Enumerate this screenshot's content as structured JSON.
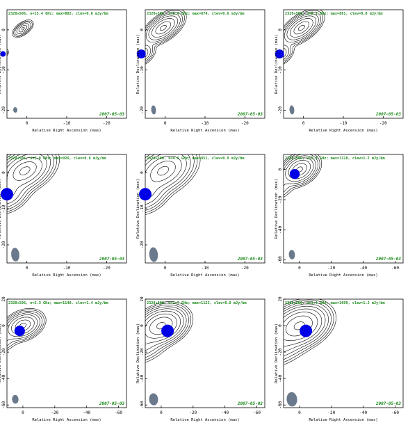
{
  "chart_data": [
    {
      "type": "contour",
      "title": "2320+506, ν=15.4 GHz; max=882, clev=0.6 mJy/bm",
      "date": "2007-05-03",
      "xlabel": "Relative Right Ascension (mas)",
      "ylabel": "Relative Declination (mas)",
      "xlim": [
        5,
        -25
      ],
      "ylim": [
        -22,
        5
      ],
      "xticks": [
        0,
        -10,
        -20
      ],
      "yticks": [
        0,
        -10,
        -20
      ],
      "component_ra": 6,
      "component_dec": -6,
      "beam_major": 1.0,
      "beam_minor": 0.6,
      "beam_pa": -5,
      "components": [
        {
          "ra": 1.0,
          "dec": 0.3,
          "ampl": 1.0,
          "a": 1.2,
          "b": 0.6,
          "ang": -35
        },
        {
          "ra": 6,
          "dec": -6,
          "ampl": 0.3,
          "a": 0.8,
          "b": 0.5,
          "ang": -35
        },
        {
          "ra": 17,
          "dec": -26,
          "ampl": 0.05,
          "a": 1.0,
          "b": 0.7,
          "ang": -30
        }
      ],
      "levels": [
        0.04,
        0.08,
        0.16,
        0.32,
        0.6,
        0.9
      ]
    },
    {
      "type": "contour",
      "title": "2320+506, ν=8.4 GHz; max=874, clev=0.6 mJy/bm",
      "date": "2007-05-03",
      "xlabel": "Relative Right Ascension (mas)",
      "ylabel": "Relative Declination (mas)",
      "xlim": [
        5,
        -25
      ],
      "ylim": [
        -22,
        5
      ],
      "xticks": [
        0,
        -10,
        -20
      ],
      "yticks": [
        0,
        -10,
        -20
      ],
      "component_ra": 6,
      "component_dec": -6,
      "beam_major": 1.6,
      "beam_minor": 1.0,
      "beam_pa": -5,
      "components": [
        {
          "ra": 0.5,
          "dec": 0.5,
          "ampl": 1.0,
          "a": 2.2,
          "b": 1.1,
          "ang": -35
        },
        {
          "ra": 6,
          "dec": -6,
          "ampl": 0.35,
          "a": 1.5,
          "b": 1.0,
          "ang": -35
        },
        {
          "ra": 17,
          "dec": -27,
          "ampl": 0.06,
          "a": 1.5,
          "b": 1.0,
          "ang": -30
        }
      ],
      "levels": [
        0.01,
        0.02,
        0.04,
        0.08,
        0.16,
        0.32,
        0.6,
        0.9
      ]
    },
    {
      "type": "contour",
      "title": "2320+506, ν=8.1 GHz; max=881, clev=0.8 mJy/bm",
      "date": "2007-05-03",
      "xlabel": "Relative Right Ascension (mas)",
      "ylabel": "Relative Declination (mas)",
      "xlim": [
        5,
        -25
      ],
      "ylim": [
        -22,
        5
      ],
      "xticks": [
        0,
        -10,
        -20
      ],
      "yticks": [
        0,
        -10,
        -20
      ],
      "component_ra": 6,
      "component_dec": -6,
      "beam_major": 1.6,
      "beam_minor": 1.0,
      "beam_pa": -5,
      "components": [
        {
          "ra": 0.5,
          "dec": 0.5,
          "ampl": 1.0,
          "a": 2.2,
          "b": 1.1,
          "ang": -35
        },
        {
          "ra": 6,
          "dec": -6,
          "ampl": 0.35,
          "a": 1.5,
          "b": 1.0,
          "ang": -35
        },
        {
          "ra": 17,
          "dec": -27,
          "ampl": 0.06,
          "a": 1.5,
          "b": 1.0,
          "ang": -30
        }
      ],
      "levels": [
        0.01,
        0.02,
        0.04,
        0.08,
        0.16,
        0.32,
        0.6,
        0.9
      ]
    },
    {
      "type": "contour",
      "title": "2320+506, ν=5.0 GHz; max=926, clev=0.8 mJy/bm",
      "date": "2007-05-03",
      "xlabel": "Relative Right Ascension (mas)",
      "ylabel": "Relative Declination (mas)",
      "xlim": [
        5,
        -25
      ],
      "ylim": [
        -25,
        5
      ],
      "xticks": [
        0,
        -10,
        -20
      ],
      "yticks": [
        0,
        -10,
        -20
      ],
      "component_ra": 5,
      "component_dec": -6,
      "beam_major": 2.7,
      "beam_minor": 1.7,
      "beam_pa": -5,
      "components": [
        {
          "ra": 0.5,
          "dec": 0.5,
          "ampl": 1.0,
          "a": 3.2,
          "b": 2.0,
          "ang": -35
        },
        {
          "ra": 5,
          "dec": -6,
          "ampl": 0.4,
          "a": 2.5,
          "b": 1.8,
          "ang": -35
        },
        {
          "ra": 16,
          "dec": -20,
          "ampl": 0.03,
          "a": 2.2,
          "b": 1.6,
          "ang": -30
        }
      ],
      "levels": [
        0.01,
        0.02,
        0.04,
        0.08,
        0.16,
        0.32,
        0.6,
        0.9
      ]
    },
    {
      "type": "contour",
      "title": "2320+506, ν=4.6 GHz; max=851, clev=0.9 mJy/bm",
      "date": "2007-05-03",
      "xlabel": "Relative Right Ascension (mas)",
      "ylabel": "Relative Declination (mas)",
      "xlim": [
        5,
        -25
      ],
      "ylim": [
        -25,
        5
      ],
      "xticks": [
        0,
        -10,
        -20
      ],
      "yticks": [
        0,
        -10,
        -20
      ],
      "component_ra": 5,
      "component_dec": -6,
      "beam_major": 2.9,
      "beam_minor": 1.8,
      "beam_pa": -5,
      "components": [
        {
          "ra": 0.5,
          "dec": 0.5,
          "ampl": 1.0,
          "a": 3.4,
          "b": 2.2,
          "ang": -35
        },
        {
          "ra": 5,
          "dec": -6,
          "ampl": 0.4,
          "a": 2.6,
          "b": 1.9,
          "ang": -35
        },
        {
          "ra": 17,
          "dec": -20,
          "ampl": 0.03,
          "a": 2.4,
          "b": 1.7,
          "ang": -30
        }
      ],
      "levels": [
        0.01,
        0.02,
        0.04,
        0.08,
        0.16,
        0.32,
        0.6,
        0.9
      ]
    },
    {
      "type": "contour",
      "title": "2320+506, ν=2.4 GHz; max=1128, clev=1.2 mJy/bm",
      "date": "2007-05-03",
      "xlabel": "Relative Right Ascension (mas)",
      "ylabel": "Relative Declination (mas)",
      "xlim": [
        10,
        -65
      ],
      "ylim": [
        -62,
        10
      ],
      "xticks": [
        0,
        -20,
        -40,
        -60
      ],
      "yticks": [
        0,
        -20,
        -40,
        -60
      ],
      "component_ra": 3,
      "component_dec": -3,
      "beam_major": 4.5,
      "beam_minor": 3.2,
      "beam_pa": -5,
      "components": [
        {
          "ra": 0,
          "dec": 0,
          "ampl": 1.0,
          "a": 5.0,
          "b": 3.5,
          "ang": -35
        },
        {
          "ra": 14,
          "dec": -12,
          "ampl": 0.1,
          "a": 5.0,
          "b": 3.5,
          "ang": -30
        },
        {
          "ra": 28,
          "dec": -18,
          "ampl": 0.04,
          "a": 5.0,
          "b": 3.0,
          "ang": -20
        }
      ],
      "levels": [
        0.01,
        0.02,
        0.04,
        0.08,
        0.16,
        0.32,
        0.6,
        0.9
      ]
    },
    {
      "type": "contour",
      "title": "2320+506, ν=2.3 GHz; max=1140, clev=1.4 mJy/bm",
      "date": "2007-05-03",
      "xlabel": "Relative Right Ascension (mas)",
      "ylabel": "Relative Declination (mas)",
      "xlim": [
        10,
        -65
      ],
      "ylim": [
        -62,
        20
      ],
      "xticks": [
        0,
        -20,
        -40,
        -60
      ],
      "yticks": [
        20,
        0,
        -20,
        -40,
        -60
      ],
      "component_ra": 2,
      "component_dec": -4,
      "beam_major": 4.7,
      "beam_minor": 3.4,
      "beam_pa": -5,
      "components": [
        {
          "ra": 0,
          "dec": 0,
          "ampl": 1.0,
          "a": 5.2,
          "b": 3.7,
          "ang": -35
        },
        {
          "ra": 14,
          "dec": -12,
          "ampl": 0.1,
          "a": 5.2,
          "b": 3.6,
          "ang": -30
        },
        {
          "ra": 28,
          "dec": -18,
          "ampl": 0.04,
          "a": 5.2,
          "b": 3.2,
          "ang": -20
        }
      ],
      "levels": [
        0.01,
        0.02,
        0.04,
        0.08,
        0.16,
        0.32,
        0.6,
        0.9
      ]
    },
    {
      "type": "contour",
      "title": "2320+506, ν=1.7 GHz; max=1122, clev=0.8 mJy/bm",
      "date": "2007-05-03",
      "xlabel": "Relative Right Ascension (mas)",
      "ylabel": "Relative Declination (mas)",
      "xlim": [
        10,
        -65
      ],
      "ylim": [
        -62,
        20
      ],
      "xticks": [
        0,
        -20,
        -40,
        -60
      ],
      "yticks": [
        20,
        0,
        -20,
        -40,
        -60
      ],
      "component_ra": -4,
      "component_dec": -4,
      "beam_major": 6.5,
      "beam_minor": 4.7,
      "beam_pa": -5,
      "components": [
        {
          "ra": 0,
          "dec": 0,
          "ampl": 1.0,
          "a": 6.5,
          "b": 4.8,
          "ang": -35
        },
        {
          "ra": 13,
          "dec": -13,
          "ampl": 0.12,
          "a": 7.5,
          "b": 5.5,
          "ang": -30
        },
        {
          "ra": 28,
          "dec": -22,
          "ampl": 0.05,
          "a": 8.0,
          "b": 5.5,
          "ang": -25
        },
        {
          "ra": 42,
          "dec": -30,
          "ampl": 0.02,
          "a": 6.0,
          "b": 4.0,
          "ang": -20
        }
      ],
      "levels": [
        0.004,
        0.008,
        0.016,
        0.032,
        0.064,
        0.13,
        0.26,
        0.5,
        0.9
      ]
    },
    {
      "type": "contour",
      "title": "2320+506, ν=1.4 GHz; max=1099, clev=1.2 mJy/bm",
      "date": "2007-05-03",
      "xlabel": "Relative Right Ascension (mas)",
      "ylabel": "Relative Declination (mas)",
      "xlim": [
        10,
        -65
      ],
      "ylim": [
        -62,
        20
      ],
      "xticks": [
        0,
        -20,
        -40,
        -60
      ],
      "yticks": [
        20,
        0,
        -20,
        -40,
        -60
      ],
      "component_ra": -4,
      "component_dec": -4,
      "beam_major": 7.8,
      "beam_minor": 5.5,
      "beam_pa": -5,
      "components": [
        {
          "ra": 0,
          "dec": 0,
          "ampl": 1.0,
          "a": 7.5,
          "b": 5.5,
          "ang": -35
        },
        {
          "ra": 13,
          "dec": -13,
          "ampl": 0.12,
          "a": 8.5,
          "b": 6.0,
          "ang": -30
        },
        {
          "ra": 28,
          "dec": -22,
          "ampl": 0.05,
          "a": 9.0,
          "b": 6.2,
          "ang": -25
        },
        {
          "ra": 42,
          "dec": -30,
          "ampl": 0.02,
          "a": 7.0,
          "b": 5.0,
          "ang": -20
        }
      ],
      "levels": [
        0.004,
        0.008,
        0.016,
        0.032,
        0.064,
        0.13,
        0.26,
        0.5,
        0.9
      ]
    }
  ],
  "colors": {
    "title": "#1a8a1a",
    "date": "#1a8a1a",
    "component": "#0000e6",
    "beam": "#6a7a8c",
    "contour": "#000000",
    "axis": "#000000"
  }
}
